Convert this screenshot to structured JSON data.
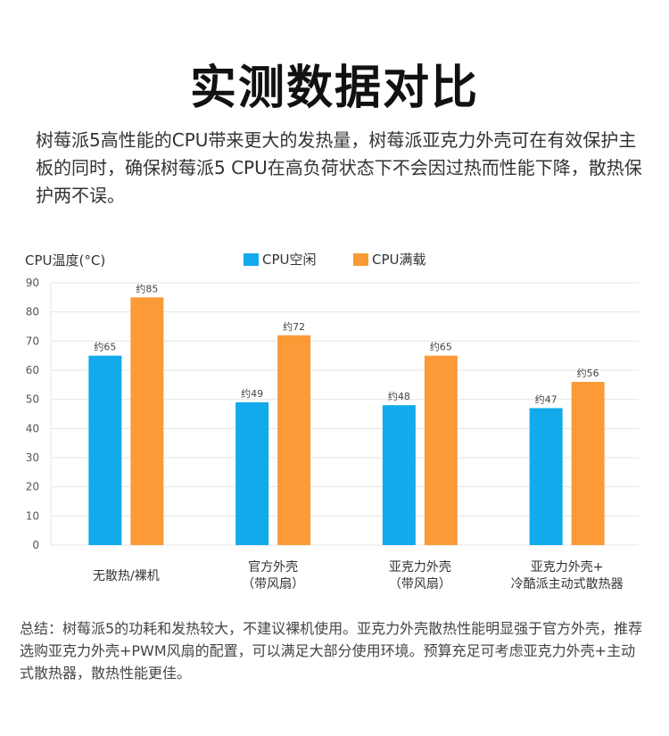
{
  "title": "实测数据对比",
  "intro": "树莓派5高性能的CPU带来更大的发热量，树莓派亚克力外壳可在有效保护主板的同时，确保树莓派5 CPU在高负荷状态下不会因过热而性能下降，散热保护两不误。",
  "summary": "总结：树莓派5的功耗和发热较大，不建议裸机使用。亚克力外壳散热性能明显强于官方外壳，推荐选购亚克力外壳+PWM风扇的配置，可以满足大部分使用环境。预算充足可考虑亚克力外壳+主动式散热器，散热性能更佳。",
  "colors": {
    "idle": "#12aaea",
    "load": "#fb9a36",
    "grid": "#e4e4e4"
  },
  "chart_data": {
    "type": "bar",
    "ylabel": "CPU温度(°C)",
    "ylim": [
      0,
      90
    ],
    "yticks": [
      0,
      10,
      20,
      30,
      40,
      50,
      60,
      70,
      80,
      90
    ],
    "grid": true,
    "legend_position": "top-center",
    "categories": [
      [
        "无散热/裸机"
      ],
      [
        "官方外壳",
        "（带风扇）"
      ],
      [
        "亚克力外壳",
        "（带风扇）"
      ],
      [
        "亚克力外壳+",
        "冷酷派主动式散热器"
      ]
    ],
    "series": [
      {
        "name": "CPU空闲",
        "values": [
          65,
          49,
          48,
          47
        ],
        "labels": [
          "约65",
          "约49",
          "约48",
          "约47"
        ]
      },
      {
        "name": "CPU满载",
        "values": [
          85,
          72,
          65,
          56
        ],
        "labels": [
          "约85",
          "约72",
          "约65",
          "约56"
        ]
      }
    ]
  }
}
